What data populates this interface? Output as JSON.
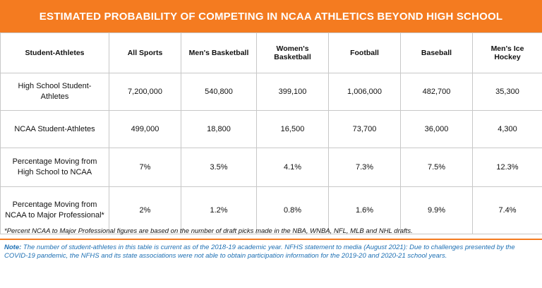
{
  "title": "ESTIMATED PROBABILITY OF COMPETING IN NCAA ATHLETICS BEYOND HIGH SCHOOL",
  "table": {
    "headers": [
      "Student-Athletes",
      "All Sports",
      "Men's Basketball",
      "Women's Basketball",
      "Football",
      "Baseball",
      "Men's Ice Hockey"
    ],
    "rows": [
      [
        "High School Student-Athletes",
        "7,200,000",
        "540,800",
        "399,100",
        "1,006,000",
        "482,700",
        "35,300"
      ],
      [
        "NCAA Student-Athletes",
        "499,000",
        "18,800",
        "16,500",
        "73,700",
        "36,000",
        "4,300"
      ],
      [
        "Percentage Moving from High School to NCAA",
        "7%",
        "3.5%",
        "4.1%",
        "7.3%",
        "7.5%",
        "12.3%"
      ],
      [
        "Percentage Moving from NCAA to Major Professional*",
        "2%",
        "1.2%",
        "0.8%",
        "1.6%",
        "9.9%",
        "7.4%"
      ]
    ]
  },
  "footnote": "*Percent NCAA to Major Professional figures are based on the number of draft picks made in the NBA, WNBA, NFL, MLB and NHL drafts.",
  "note_label": "Note:",
  "note_text": " The number of student-athletes in this table is current as of the 2018-19 academic year. NFHS statement to media (August 2021): Due to challenges presented by the COVID-19 pandemic, the NFHS and its state associations were not able to obtain participation information for the 2019-20 and 2020-21 school years.",
  "colors": {
    "accent": "#f47b20",
    "note": "#1d6fb3"
  }
}
